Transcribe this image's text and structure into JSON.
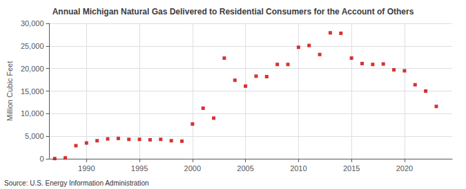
{
  "chart_data": {
    "type": "scatter",
    "title": "Annual Michigan Natural Gas Delivered to Residential Consumers for the Account of Others",
    "ylabel": "Million Cubic Feet",
    "annotation": "Source: U.S. Energy Information Administration",
    "x": [
      1987,
      1988,
      1989,
      1990,
      1991,
      1992,
      1993,
      1994,
      1995,
      1996,
      1997,
      1998,
      1999,
      2000,
      2001,
      2002,
      2003,
      2004,
      2005,
      2006,
      2007,
      2008,
      2009,
      2010,
      2011,
      2012,
      2013,
      2014,
      2015,
      2016,
      2017,
      2018,
      2019,
      2020,
      2021,
      2022,
      2023
    ],
    "values": [
      50,
      200,
      2900,
      3500,
      4000,
      4400,
      4500,
      4300,
      4300,
      4200,
      4300,
      4000,
      3900,
      7700,
      11200,
      9000,
      22300,
      17400,
      16100,
      18300,
      18200,
      20900,
      20900,
      24700,
      25100,
      23100,
      27900,
      27800,
      22300,
      21100,
      20900,
      21000,
      19700,
      19500,
      16400,
      15000,
      11600
    ],
    "color": "#cc0000",
    "marker": "square",
    "xlim": [
      1986.5,
      2024.5
    ],
    "xticks": [
      1990,
      1995,
      2000,
      2005,
      2010,
      2015,
      2020
    ],
    "ylim": [
      0,
      30000
    ],
    "yticks": [
      0,
      {
        "value": 5000,
        "label": "5,000"
      },
      {
        "value": 10000,
        "label": "10,000"
      },
      {
        "value": 15000,
        "label": "15,000"
      },
      {
        "value": 20000,
        "label": "20,000"
      },
      {
        "value": 25000,
        "label": "25,000"
      },
      {
        "value": 30000,
        "label": "30,000"
      }
    ],
    "grid": true
  }
}
